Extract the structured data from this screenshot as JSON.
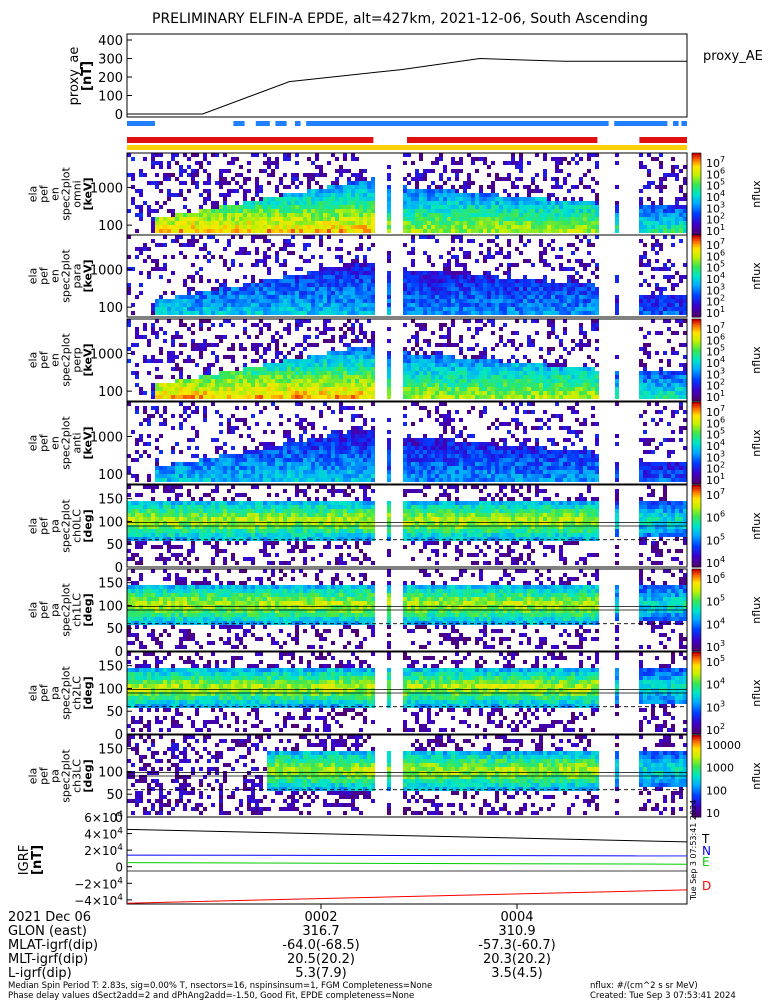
{
  "title": "PRELIMINARY ELFIN-A EPDE, alt=427km, 2021-12-06, South Ascending",
  "colors": {
    "bar_blue": "#1f7fff",
    "bar_red": "#e01010",
    "bar_yellow": "#ffd000",
    "trace_T": "#000000",
    "trace_N": "#0000ff",
    "trace_E": "#00cc00",
    "trace_D": "#ff0000"
  },
  "chart_data": [
    {
      "id": "proxy_ae",
      "type": "line",
      "ylabel": "proxy_ae\n[nT]",
      "right_label": "proxy_AE",
      "yticks": [
        "400",
        "300",
        "200",
        "100",
        "0"
      ],
      "ylim": [
        0,
        400
      ],
      "x": [
        0.0,
        0.135,
        0.29,
        0.49,
        0.63,
        0.78,
        1.0
      ],
      "y": [
        0,
        0,
        175,
        240,
        300,
        285,
        285
      ]
    },
    {
      "id": "energy_spectra",
      "type": "heatmap",
      "yticks": [
        "1000",
        "100"
      ],
      "panels": [
        {
          "ylabel": "ela\npef\nen\nspec2plot\nomni\n[keV]",
          "cb_ticks": [
            "10^7",
            "10^6",
            "10^5",
            "10^4",
            "10^3",
            "10^2",
            "10^1"
          ],
          "cb_label": "nflux"
        },
        {
          "ylabel": "ela\npef\nen\nspec2plot\npara\n[keV]",
          "cb_ticks": [
            "10^7",
            "10^6",
            "10^5",
            "10^4",
            "10^3",
            "10^2",
            "10^1"
          ],
          "cb_label": "nflux"
        },
        {
          "ylabel": "ela\npef\nen\nspec2plot\nperp\n[keV]",
          "cb_ticks": [
            "10^7",
            "10^6",
            "10^5",
            "10^4",
            "10^3",
            "10^2",
            "10^1"
          ],
          "cb_label": "nflux"
        },
        {
          "ylabel": "ela\npef\nen\nspec2plot\nanti\n[keV]",
          "cb_ticks": [
            "10^7",
            "10^6",
            "10^5",
            "10^4",
            "10^3",
            "10^2",
            "10^1"
          ],
          "cb_label": "nflux"
        }
      ]
    },
    {
      "id": "pitch_angle_spectra",
      "type": "heatmap",
      "yticks": [
        "150",
        "100",
        "50",
        "0"
      ],
      "panels": [
        {
          "ylabel": "ela\npef\npa\nspec2plot\nch0LC\n[deg]",
          "cb_ticks": [
            "10^7",
            "10^6",
            "10^5",
            "10^4"
          ],
          "cb_label": "nflux"
        },
        {
          "ylabel": "ela\npef\npa\nspec2plot\nch1LC\n[deg]",
          "cb_ticks": [
            "10^6",
            "10^5",
            "10^4",
            "10^3"
          ],
          "cb_label": "nflux"
        },
        {
          "ylabel": "ela\npef\npa\nspec2plot\nch2LC\n[deg]",
          "cb_ticks": [
            "10^5",
            "10^4",
            "10^3",
            "10^2"
          ],
          "cb_label": "nflux"
        },
        {
          "ylabel": "ela\npef\npa\nspec2plot\nch3LC\n[deg]",
          "cb_ticks": [
            "10000",
            "1000",
            "100",
            "10"
          ],
          "cb_label": "nflux"
        }
      ]
    },
    {
      "id": "igrf",
      "type": "line",
      "ylabel": "IGRF\n[nT]",
      "yticks": [
        "6×10^4",
        "4×10^4",
        "2×10^4",
        "0",
        "−2×10^4",
        "−4×10^4"
      ],
      "ylim": [
        -45000,
        60000
      ],
      "series": [
        {
          "name": "T",
          "x": [
            0,
            1
          ],
          "y": [
            45000,
            30000
          ]
        },
        {
          "name": "N",
          "x": [
            0,
            1
          ],
          "y": [
            14000,
            13000
          ]
        },
        {
          "name": "E",
          "x": [
            0,
            1
          ],
          "y": [
            5000,
            3000
          ]
        },
        {
          "name": "D",
          "x": [
            0,
            1
          ],
          "y": [
            -44000,
            -28000
          ]
        }
      ]
    }
  ],
  "footer": {
    "date_label": "2021 Dec 06",
    "row_labels": [
      "GLON (east)",
      "MLAT-igrf(dip)",
      "MLT-igrf(dip)",
      "L-igrf(dip)"
    ],
    "cols": [
      {
        "time": "0002",
        "vals": [
          "316.7",
          "-64.0(-68.5)",
          "20.5(20.2)",
          "5.3(7.9)"
        ]
      },
      {
        "time": "0004",
        "vals": [
          "310.9",
          "-57.3(-60.7)",
          "20.3(20.2)",
          "3.5(4.5)"
        ]
      }
    ],
    "notes": [
      "Median Spin Period T: 2.83s, sig=0.00% T, nsectors=16, nspinsinsum=1, FGM Completeness=None",
      "Phase delay values dSect2add=2 and dPhAng2add=-1.50, Good Fit, EPDE completeness=None"
    ],
    "units_note": "nflux: #/(cm^2 s sr MeV)",
    "created": "Created: Tue Sep  3 07:53:41 2024",
    "vertical_stamp": "Tue Sep  3 07:53:41 2024"
  }
}
